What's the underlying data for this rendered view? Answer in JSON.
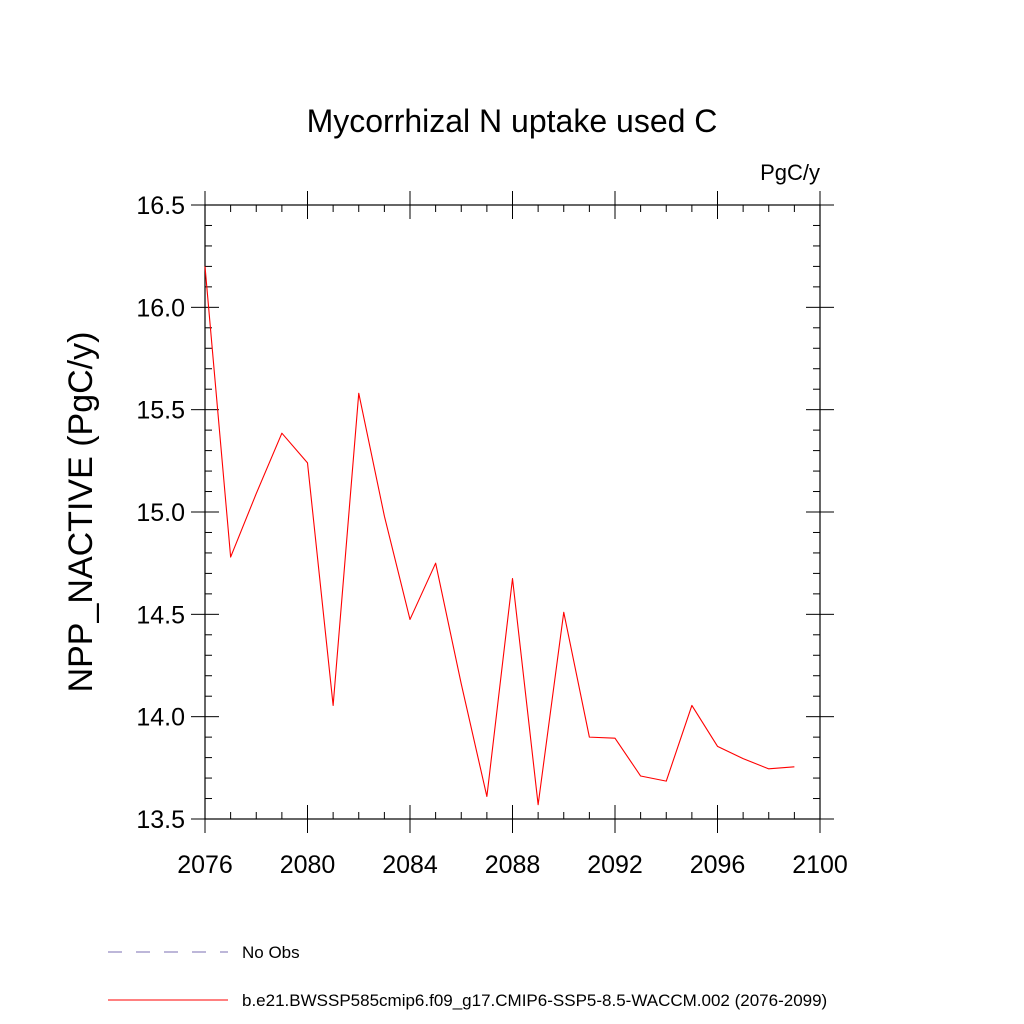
{
  "chart_data": {
    "type": "line",
    "title": "Mycorrhizal N uptake used C",
    "units": "PgC/y",
    "xlabel": "",
    "ylabel": "NPP_NACTIVE  (PgC/y)",
    "xlim": [
      2076,
      2100
    ],
    "ylim": [
      13.5,
      16.5
    ],
    "x_ticks": [
      2076,
      2080,
      2084,
      2088,
      2092,
      2096,
      2100
    ],
    "x_tick_labels": [
      "2076",
      "2080",
      "2084",
      "2088",
      "2092",
      "2096",
      "2100"
    ],
    "y_ticks": [
      13.5,
      14.0,
      14.5,
      15.0,
      15.5,
      16.0,
      16.5
    ],
    "y_tick_labels": [
      "13.5",
      "14.0",
      "14.5",
      "15.0",
      "15.5",
      "16.0",
      "16.5"
    ],
    "grid": false,
    "series": [
      {
        "name": "b.e21.BWSSP585cmip6.f09_g17.CMIP6-SSP5-8.5-WACCM.002 (2076-2099)",
        "color": "#ff0000",
        "style": "solid",
        "x": [
          2076,
          2077,
          2078,
          2079,
          2080,
          2081,
          2082,
          2083,
          2084,
          2085,
          2086,
          2087,
          2088,
          2089,
          2090,
          2091,
          2092,
          2093,
          2094,
          2095,
          2096,
          2097,
          2098,
          2099
        ],
        "y": [
          16.2,
          14.78,
          15.09,
          15.385,
          15.24,
          14.055,
          15.58,
          14.98,
          14.475,
          14.75,
          14.16,
          13.61,
          14.675,
          13.57,
          14.51,
          13.9,
          13.895,
          13.71,
          13.685,
          14.055,
          13.855,
          13.795,
          13.745,
          13.755
        ]
      }
    ],
    "legend": [
      {
        "label": "No Obs",
        "color": "#7b6fb3",
        "style": "dashed"
      },
      {
        "label": "b.e21.BWSSP585cmip6.f09_g17.CMIP6-SSP5-8.5-WACCM.002 (2076-2099)",
        "color": "#ff0000",
        "style": "solid"
      }
    ],
    "legend_position": "bottom"
  }
}
